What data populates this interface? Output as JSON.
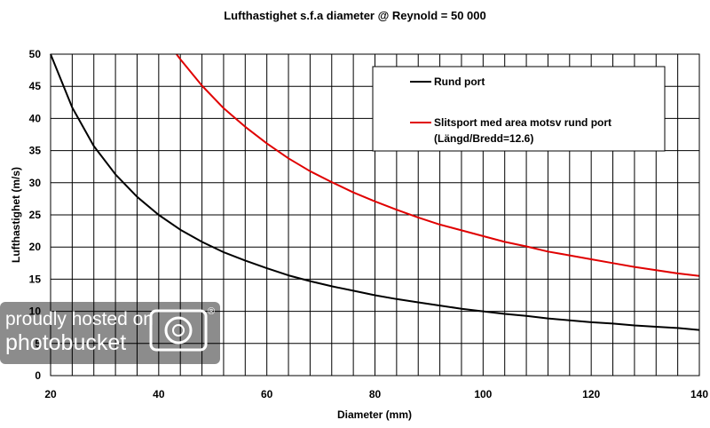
{
  "chart_data": {
    "type": "line",
    "title": "Lufthastighet s.f.a diameter @ Reynold = 50 000",
    "xlabel": "Diameter (mm)",
    "ylabel": "Lufthastighet (m/s)",
    "xlim": [
      20,
      140
    ],
    "ylim": [
      0,
      50
    ],
    "x_ticks": [
      "20",
      "40",
      "60",
      "80",
      "100",
      "120",
      "140"
    ],
    "y_ticks": [
      "0",
      "5",
      "10",
      "15",
      "20",
      "25",
      "30",
      "35",
      "40",
      "45",
      "50"
    ],
    "x_minor_step": 4,
    "grid": true,
    "legend_position": "top-right",
    "series": [
      {
        "name": "Rund port",
        "color": "#000000",
        "x": [
          20,
          24,
          28,
          32,
          36,
          40,
          44,
          48,
          52,
          56,
          60,
          64,
          68,
          72,
          76,
          80,
          84,
          88,
          92,
          96,
          100,
          104,
          108,
          112,
          116,
          120,
          124,
          128,
          132,
          136,
          140
        ],
        "y": [
          50,
          41.7,
          35.7,
          31.3,
          27.8,
          25,
          22.7,
          20.8,
          19.2,
          17.9,
          16.7,
          15.6,
          14.7,
          13.9,
          13.2,
          12.5,
          11.9,
          11.4,
          10.9,
          10.4,
          10,
          9.6,
          9.3,
          8.9,
          8.6,
          8.3,
          8.1,
          7.8,
          7.6,
          7.4,
          7.1
        ]
      },
      {
        "name": "Slitsport med area motsv rund port",
        "name_line2": "(Längd/Bredd=12.6)",
        "color": "#e00000",
        "x": [
          43.3,
          44,
          48,
          52,
          56,
          60,
          64,
          68,
          72,
          76,
          80,
          84,
          88,
          92,
          96,
          100,
          104,
          108,
          112,
          116,
          120,
          124,
          128,
          132,
          136,
          140
        ],
        "y": [
          50,
          49.2,
          45.1,
          41.6,
          38.7,
          36.1,
          33.8,
          31.8,
          30.1,
          28.5,
          27.1,
          25.8,
          24.6,
          23.5,
          22.6,
          21.7,
          20.8,
          20.1,
          19.3,
          18.7,
          18.1,
          17.5,
          16.9,
          16.4,
          15.9,
          15.5
        ]
      }
    ]
  },
  "watermark": {
    "line1": "proudly hosted on",
    "line2": "photobucket",
    "mark": "®",
    "icon": "camera-icon"
  }
}
